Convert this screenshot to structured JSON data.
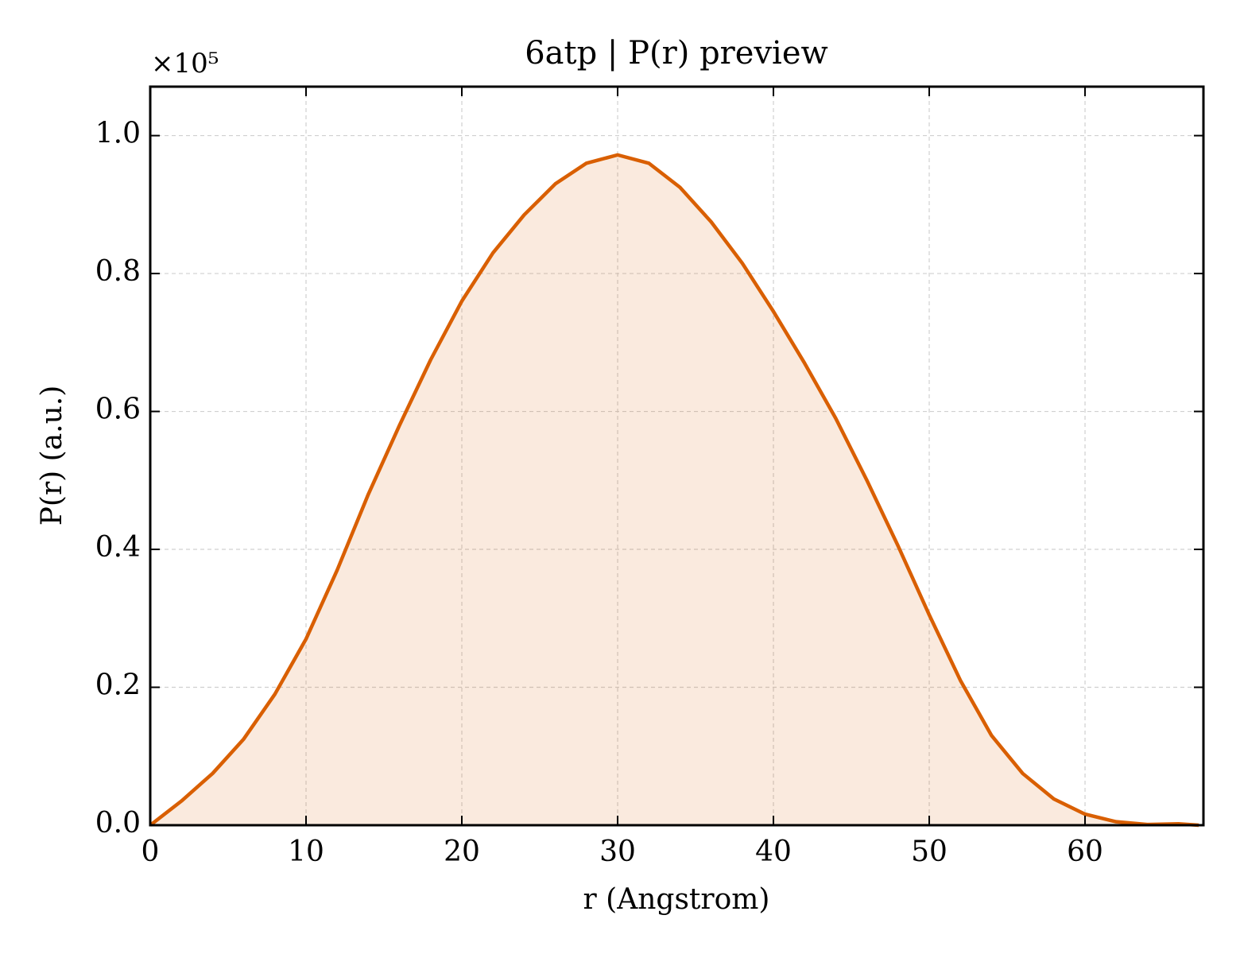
{
  "chart_data": {
    "type": "line",
    "title": "6atp | P(r) preview",
    "xlabel": "r (Angstrom)",
    "ylabel": "P(r) (a.u.)",
    "y_offset_label": "×10⁵",
    "x": [
      0,
      2,
      4,
      6,
      8,
      10,
      12,
      14,
      16,
      18,
      20,
      22,
      24,
      26,
      28,
      30,
      32,
      34,
      36,
      38,
      40,
      42,
      44,
      46,
      48,
      50,
      52,
      54,
      56,
      58,
      60,
      62,
      64,
      66,
      67.3
    ],
    "series": [
      {
        "color": "#d95f02",
        "fill": true,
        "values": [
          0,
          0.035,
          0.075,
          0.125,
          0.19,
          0.27,
          0.37,
          0.48,
          0.58,
          0.675,
          0.76,
          0.83,
          0.885,
          0.93,
          0.96,
          0.972,
          0.96,
          0.925,
          0.875,
          0.815,
          0.745,
          0.67,
          0.59,
          0.5,
          0.405,
          0.305,
          0.21,
          0.13,
          0.075,
          0.038,
          0.016,
          0.005,
          0.001,
          0.002,
          0.0
        ]
      }
    ],
    "xlim": [
      0,
      67.6
    ],
    "ylim": [
      0,
      1.071
    ],
    "xticks": [
      0,
      10,
      20,
      30,
      40,
      50,
      60
    ],
    "yticks": [
      {
        "value": 0,
        "label": "0.0"
      },
      {
        "value": 0.2,
        "label": "0.2"
      },
      {
        "value": 0.4,
        "label": "0.4"
      },
      {
        "value": 0.6,
        "label": "0.6"
      },
      {
        "value": 0.8,
        "label": "0.8"
      },
      {
        "value": 1,
        "label": "1.0"
      }
    ],
    "grid": true
  }
}
